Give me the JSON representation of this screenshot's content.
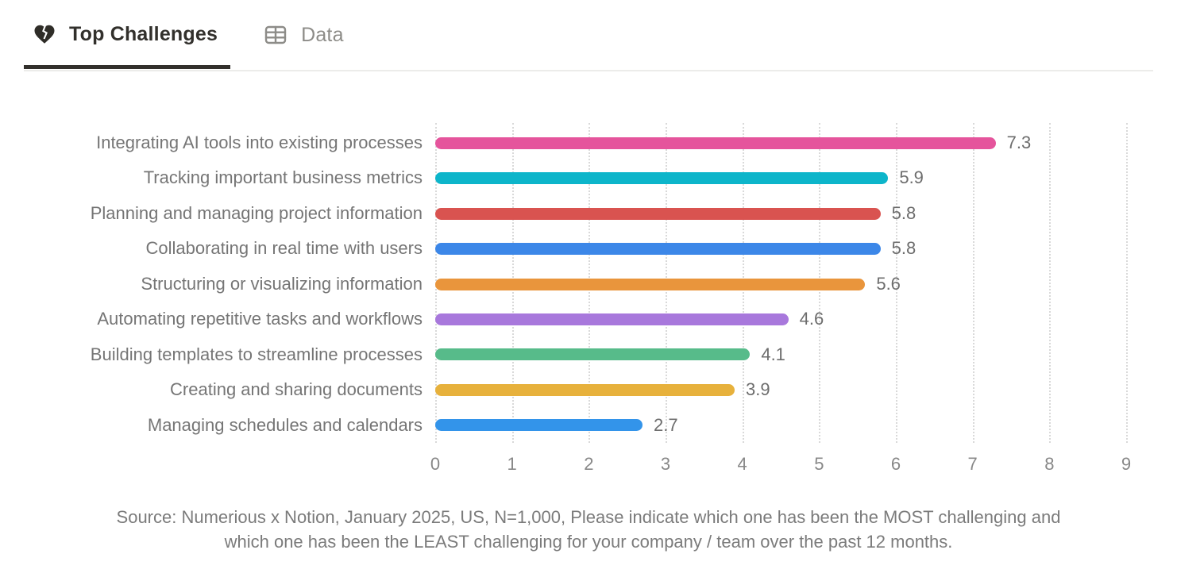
{
  "tabs": [
    {
      "label": "Top Challenges",
      "icon": "broken-heart-icon",
      "active": true
    },
    {
      "label": "Data",
      "icon": "table-icon",
      "active": false
    }
  ],
  "chart_data": {
    "type": "bar",
    "orientation": "horizontal",
    "title": "",
    "xlabel": "",
    "ylabel": "",
    "categories": [
      "Integrating AI tools into existing processes",
      "Tracking important business metrics",
      "Planning and managing project information",
      "Collaborating in real time with users",
      "Structuring or visualizing information",
      "Automating repetitive tasks and workflows",
      "Building templates to streamline processes",
      "Creating and sharing documents",
      "Managing schedules and calendars"
    ],
    "values": [
      7.3,
      5.9,
      5.8,
      5.8,
      5.6,
      4.6,
      4.1,
      3.9,
      2.7
    ],
    "value_labels": [
      "7.3",
      "5.9",
      "5.8",
      "5.8",
      "5.6",
      "4.6",
      "4.1",
      "3.9",
      "2.7"
    ],
    "bar_colors": [
      "#e5549c",
      "#0db5ca",
      "#d95350",
      "#3c87e8",
      "#e9953c",
      "#a878dc",
      "#57bb8a",
      "#e7b13c",
      "#3394ea"
    ],
    "xlim": [
      0,
      9
    ],
    "x_ticks": [
      "0",
      "1",
      "2",
      "3",
      "4",
      "5",
      "6",
      "7",
      "8",
      "9"
    ],
    "grid": "vertical-dotted",
    "gridline_color": "#d9d9d9",
    "category_label_color": "#757575",
    "value_label_color": "#6d6d6d",
    "tick_label_color": "#888888",
    "legend": "none"
  },
  "source": {
    "line1": "Source: Numerious x Notion, January 2025, US, N=1,000, Please indicate which one has been the MOST challenging and",
    "line2": "which one has been the LEAST challenging for your company /  team over the past 12 months."
  }
}
